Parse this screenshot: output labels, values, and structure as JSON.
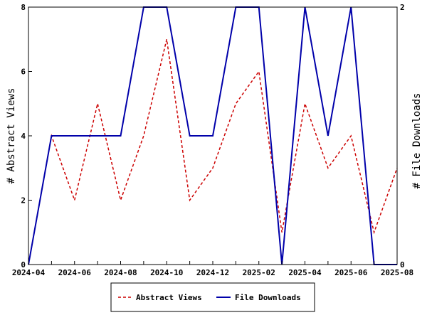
{
  "chart_data": {
    "type": "line",
    "x": [
      "2024-04",
      "2024-05",
      "2024-06",
      "2024-07",
      "2024-08",
      "2024-09",
      "2024-10",
      "2024-11",
      "2024-12",
      "2025-01",
      "2025-02",
      "2025-03",
      "2025-04",
      "2025-05",
      "2025-06",
      "2025-07",
      "2025-08"
    ],
    "x_tick_labels": [
      "2024-04",
      "2024-06",
      "2024-08",
      "2024-10",
      "2024-12",
      "2025-02",
      "2025-04",
      "2025-06",
      "2025-08"
    ],
    "series": [
      {
        "name": "Abstract Views",
        "axis": "left",
        "color": "#cc0000",
        "dash": "dashed",
        "values": [
          0,
          4,
          2,
          5,
          2,
          4,
          7,
          2,
          3,
          5,
          6,
          1,
          5,
          3,
          4,
          1,
          3
        ]
      },
      {
        "name": "File Downloads",
        "axis": "right",
        "color": "#0000aa",
        "dash": "solid",
        "values": [
          0,
          1,
          1,
          1,
          1,
          2,
          2,
          1,
          1,
          2,
          2,
          0,
          2,
          1,
          2,
          0,
          0
        ]
      }
    ],
    "ylabel_left": "# Abstract Views",
    "ylabel_right": "# File Downloads",
    "ylim_left": [
      0,
      8
    ],
    "ylim_right": [
      0,
      2
    ],
    "yticks_left": [
      "0",
      "2",
      "4",
      "6",
      "8"
    ],
    "yticks_right": [
      "0",
      "2"
    ],
    "legend_placement": "bottom-center",
    "grid": false
  }
}
